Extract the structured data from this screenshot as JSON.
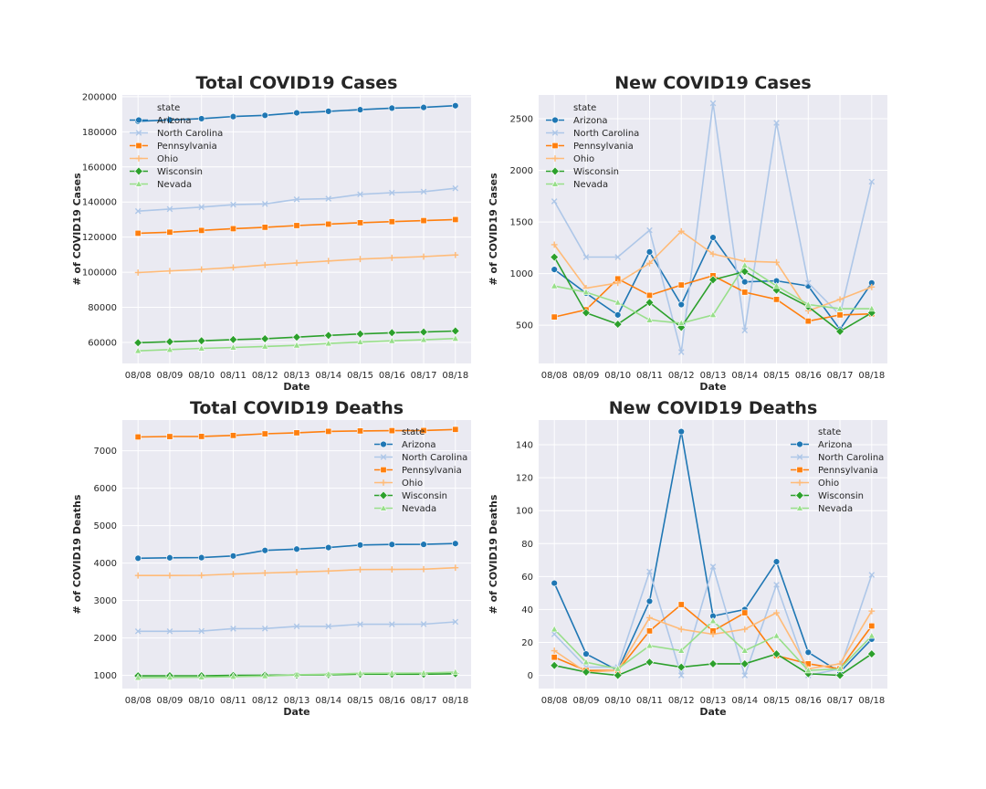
{
  "legend_title": "state",
  "colors": {
    "Arizona": "#1f77b4",
    "North Carolina": "#aec7e8",
    "Pennsylvania": "#ff7f0e",
    "Ohio": "#ffbb78",
    "Wisconsin": "#2ca02c",
    "Nevada": "#98df8a"
  },
  "markers": {
    "Arizona": "circle",
    "North Carolina": "x",
    "Pennsylvania": "square",
    "Ohio": "plus",
    "Wisconsin": "diamond",
    "Nevada": "triangle"
  },
  "chart_data": [
    {
      "type": "line",
      "title": "Total COVID19 Cases",
      "xlabel": "Date",
      "ylabel": "# of COVID19 Cases",
      "legend_position": "top-left",
      "ylim": [
        48000,
        201000
      ],
      "yticks": [
        60000,
        80000,
        100000,
        120000,
        140000,
        160000,
        180000,
        200000
      ],
      "x": [
        "08/08",
        "08/09",
        "08/10",
        "08/11",
        "08/12",
        "08/13",
        "08/14",
        "08/15",
        "08/16",
        "08/17",
        "08/18"
      ],
      "series": [
        {
          "name": "Arizona",
          "values": [
            186000,
            186800,
            187500,
            188700,
            189400,
            190800,
            191700,
            192600,
            193500,
            193900,
            194900
          ]
        },
        {
          "name": "North Carolina",
          "values": [
            134800,
            136000,
            137100,
            138500,
            138900,
            141500,
            141900,
            144400,
            145300,
            145900,
            147800
          ]
        },
        {
          "name": "Pennsylvania",
          "values": [
            122200,
            122800,
            123800,
            124800,
            125600,
            126600,
            127400,
            128200,
            128800,
            129400,
            130000
          ]
        },
        {
          "name": "Ohio",
          "values": [
            99800,
            100700,
            101600,
            102700,
            104100,
            105300,
            106400,
            107500,
            108200,
            108900,
            109800
          ]
        },
        {
          "name": "Wisconsin",
          "values": [
            59800,
            60400,
            60900,
            61600,
            62100,
            63000,
            64000,
            64800,
            65500,
            65900,
            66500
          ]
        },
        {
          "name": "Nevada",
          "values": [
            55200,
            55900,
            56600,
            57100,
            57700,
            58300,
            59400,
            60200,
            60900,
            61500,
            62200
          ]
        }
      ]
    },
    {
      "type": "line",
      "title": "New COVID19 Cases",
      "xlabel": "Date",
      "ylabel": "# of COVID19 Cases",
      "legend_position": "top-left",
      "ylim": [
        130,
        2730
      ],
      "yticks": [
        500,
        1000,
        1500,
        2000,
        2500
      ],
      "x": [
        "08/08",
        "08/09",
        "08/10",
        "08/11",
        "08/12",
        "08/13",
        "08/14",
        "08/15",
        "08/16",
        "08/17",
        "08/18"
      ],
      "series": [
        {
          "name": "Arizona",
          "values": [
            1040,
            810,
            600,
            1210,
            700,
            1350,
            920,
            930,
            880,
            460,
            910
          ]
        },
        {
          "name": "North Carolina",
          "values": [
            1700,
            1160,
            1160,
            1420,
            240,
            2650,
            450,
            2460,
            910,
            600,
            1890
          ]
        },
        {
          "name": "Pennsylvania",
          "values": [
            580,
            650,
            950,
            790,
            890,
            980,
            820,
            750,
            540,
            600,
            610
          ]
        },
        {
          "name": "Ohio",
          "values": [
            1280,
            860,
            910,
            1100,
            1410,
            1190,
            1120,
            1110,
            640,
            750,
            870
          ]
        },
        {
          "name": "Wisconsin",
          "values": [
            1160,
            620,
            510,
            720,
            480,
            940,
            1020,
            840,
            680,
            440,
            620
          ]
        },
        {
          "name": "Nevada",
          "values": [
            880,
            820,
            720,
            550,
            520,
            600,
            1080,
            880,
            700,
            660,
            660
          ]
        }
      ]
    },
    {
      "type": "line",
      "title": "Total COVID19 Deaths",
      "xlabel": "Date",
      "ylabel": "# of COVID19 Deaths",
      "legend_position": "top-right",
      "ylim": [
        650,
        7820
      ],
      "yticks": [
        1000,
        2000,
        3000,
        4000,
        5000,
        6000,
        7000
      ],
      "x": [
        "08/08",
        "08/09",
        "08/10",
        "08/11",
        "08/12",
        "08/13",
        "08/14",
        "08/15",
        "08/16",
        "08/17",
        "08/18"
      ],
      "series": [
        {
          "name": "Arizona",
          "values": [
            4130,
            4143,
            4146,
            4191,
            4339,
            4375,
            4415,
            4484,
            4498,
            4500,
            4522
          ]
        },
        {
          "name": "North Carolina",
          "values": [
            2180,
            2180,
            2185,
            2250,
            2252,
            2311,
            2311,
            2366,
            2366,
            2370,
            2431
          ]
        },
        {
          "name": "Pennsylvania",
          "values": [
            7370,
            7380,
            7383,
            7410,
            7453,
            7480,
            7518,
            7530,
            7537,
            7541,
            7570
          ]
        },
        {
          "name": "Ohio",
          "values": [
            3670,
            3670,
            3673,
            3708,
            3736,
            3761,
            3789,
            3827,
            3831,
            3838,
            3877
          ]
        },
        {
          "name": "Wisconsin",
          "values": [
            990,
            992,
            992,
            1000,
            1005,
            1012,
            1019,
            1032,
            1033,
            1033,
            1046
          ]
        },
        {
          "name": "Nevada",
          "values": [
            940,
            948,
            952,
            970,
            985,
            1018,
            1033,
            1057,
            1060,
            1064,
            1088
          ]
        }
      ]
    },
    {
      "type": "line",
      "title": "New COVID19 Deaths",
      "xlabel": "Date",
      "ylabel": "# of COVID19 Deaths",
      "legend_position": "top-right",
      "ylim": [
        -8,
        155
      ],
      "yticks": [
        0,
        20,
        40,
        60,
        80,
        100,
        120,
        140
      ],
      "x": [
        "08/08",
        "08/09",
        "08/10",
        "08/11",
        "08/12",
        "08/13",
        "08/14",
        "08/15",
        "08/16",
        "08/17",
        "08/18"
      ],
      "series": [
        {
          "name": "Arizona",
          "values": [
            56,
            13,
            3,
            45,
            148,
            36,
            40,
            69,
            14,
            2,
            22
          ]
        },
        {
          "name": "North Carolina",
          "values": [
            25,
            5,
            5,
            63,
            0,
            66,
            0,
            55,
            0,
            4,
            61
          ]
        },
        {
          "name": "Pennsylvania",
          "values": [
            11,
            3,
            3,
            27,
            43,
            27,
            38,
            12,
            7,
            4,
            30
          ]
        },
        {
          "name": "Ohio",
          "values": [
            15,
            2,
            3,
            35,
            28,
            25,
            28,
            38,
            4,
            7,
            39
          ]
        },
        {
          "name": "Wisconsin",
          "values": [
            6,
            2,
            0,
            8,
            5,
            7,
            7,
            13,
            1,
            0,
            13
          ]
        },
        {
          "name": "Nevada",
          "values": [
            28,
            8,
            4,
            18,
            15,
            33,
            15,
            24,
            3,
            4,
            24
          ]
        }
      ]
    }
  ]
}
